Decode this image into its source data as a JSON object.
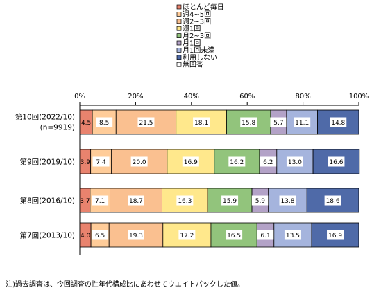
{
  "chart_data": {
    "type": "bar",
    "orientation": "horizontal",
    "stacked": true,
    "percent_stacked": true,
    "categories": [
      [
        "第10回(2022/10)",
        "(n=9919)"
      ],
      [
        "第9回(2019/10)"
      ],
      [
        "第8回(2016/10)"
      ],
      [
        "第7回(2013/10)"
      ]
    ],
    "series": [
      {
        "name": "ほとんど毎日",
        "color": "#e9836e",
        "values": [
          4.5,
          3.9,
          3.7,
          4.0
        ]
      },
      {
        "name": "週4~5回",
        "color": "#ffcc99",
        "values": [
          8.5,
          7.4,
          7.1,
          6.5
        ]
      },
      {
        "name": "週2~3回",
        "color": "#fac090",
        "values": [
          21.5,
          20.0,
          18.7,
          19.3
        ]
      },
      {
        "name": "週1回",
        "color": "#ffe88c",
        "values": [
          18.1,
          16.9,
          16.3,
          17.2
        ]
      },
      {
        "name": "月2~3回",
        "color": "#92c47c",
        "values": [
          15.8,
          16.2,
          15.9,
          16.5
        ]
      },
      {
        "name": "月1回",
        "color": "#b3a2c7",
        "values": [
          5.7,
          6.2,
          5.9,
          6.1
        ]
      },
      {
        "name": "月1回未満",
        "color": "#a5b4dd",
        "values": [
          11.1,
          13.0,
          13.8,
          13.5
        ]
      },
      {
        "name": "利用しない",
        "color": "#4f6aa8",
        "values": [
          14.8,
          16.6,
          18.6,
          16.9
        ]
      },
      {
        "name": "無回答",
        "color": "#ffffff",
        "values": [
          0,
          0,
          0,
          0
        ]
      }
    ],
    "x_ticks": [
      "0%",
      "20%",
      "40%",
      "60%",
      "80%",
      "100%"
    ],
    "xlim": [
      0,
      100
    ],
    "legend_position": "top"
  },
  "footnote": "注)過去調査は、今回調査の性年代構成比にあわせてウエイトバックした値。"
}
